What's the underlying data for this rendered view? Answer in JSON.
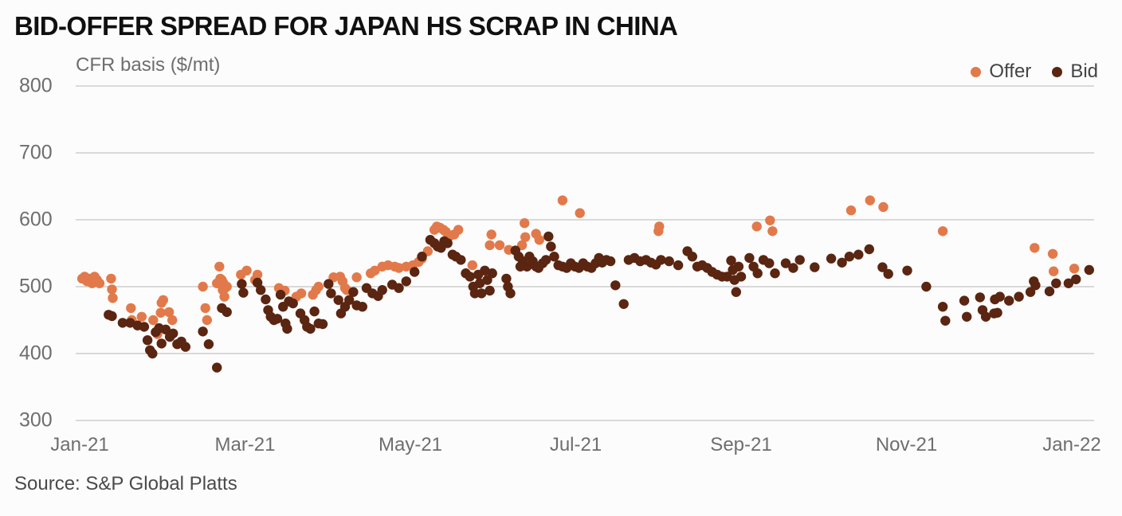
{
  "header": {
    "title": "BID-OFFER SPREAD FOR JAPAN HS SCRAP IN CHINA"
  },
  "footer": {
    "source": "Source: S&P Global Platts"
  },
  "chart_data": {
    "type": "scatter",
    "title": "BID-OFFER SPREAD FOR JAPAN HS SCRAP IN CHINA",
    "y_axis_label": "CFR basis ($/mt)",
    "source": "Source: S&P Global Platts",
    "ylim": [
      300,
      800
    ],
    "yticks": [
      800,
      700,
      600,
      500,
      400,
      300
    ],
    "xticks": [
      {
        "label": "Jan-21",
        "month": 0
      },
      {
        "label": "Mar-21",
        "month": 2
      },
      {
        "label": "May-21",
        "month": 4
      },
      {
        "label": "Jul-21",
        "month": 6
      },
      {
        "label": "Sep-21",
        "month": 8
      },
      {
        "label": "Nov-21",
        "month": 10
      },
      {
        "label": "Jan-22",
        "month": 12
      }
    ],
    "x_unit": "months since Jan-2021",
    "grid": "horizontal-only",
    "grid_color": "#d9d9d9",
    "background": "#fcfcfc",
    "legend_position": "top-right",
    "point_radius": 6.2,
    "text_colors": {
      "title": "#101010",
      "axis": "#6e6e6e",
      "legend": "#444444",
      "source": "#4a4a4a"
    },
    "series": [
      {
        "name": "Offer",
        "color": "#E2794A",
        "points": [
          [
            0.03,
            512
          ],
          [
            0.06,
            515
          ],
          [
            0.09,
            508
          ],
          [
            0.12,
            512
          ],
          [
            0.15,
            505
          ],
          [
            0.18,
            515
          ],
          [
            0.21,
            510
          ],
          [
            0.24,
            505
          ],
          [
            0.38,
            512
          ],
          [
            0.39,
            496
          ],
          [
            0.4,
            483
          ],
          [
            0.62,
            468
          ],
          [
            0.63,
            450
          ],
          [
            0.75,
            455
          ],
          [
            0.89,
            450
          ],
          [
            0.94,
            429
          ],
          [
            0.98,
            461
          ],
          [
            0.99,
            476
          ],
          [
            1.01,
            480
          ],
          [
            1.08,
            462
          ],
          [
            1.12,
            450
          ],
          [
            1.49,
            500
          ],
          [
            1.52,
            468
          ],
          [
            1.54,
            450
          ],
          [
            1.66,
            505
          ],
          [
            1.69,
            530
          ],
          [
            1.7,
            512
          ],
          [
            1.72,
            510
          ],
          [
            1.73,
            495
          ],
          [
            1.74,
            505
          ],
          [
            1.75,
            485
          ],
          [
            1.76,
            498
          ],
          [
            1.78,
            500
          ],
          [
            1.95,
            518
          ],
          [
            2.02,
            524
          ],
          [
            2.12,
            510
          ],
          [
            2.15,
            518
          ],
          [
            2.41,
            498
          ],
          [
            2.48,
            494
          ],
          [
            2.62,
            485
          ],
          [
            2.68,
            490
          ],
          [
            2.82,
            488
          ],
          [
            2.86,
            495
          ],
          [
            2.89,
            500
          ],
          [
            3.07,
            514
          ],
          [
            3.15,
            515
          ],
          [
            3.18,
            508
          ],
          [
            3.21,
            498
          ],
          [
            3.23,
            495
          ],
          [
            3.35,
            514
          ],
          [
            3.52,
            520
          ],
          [
            3.57,
            524
          ],
          [
            3.66,
            530
          ],
          [
            3.73,
            532
          ],
          [
            3.81,
            530
          ],
          [
            3.86,
            528
          ],
          [
            3.95,
            530
          ],
          [
            4.03,
            532
          ],
          [
            4.1,
            537
          ],
          [
            4.14,
            542
          ],
          [
            4.21,
            553
          ],
          [
            4.29,
            585
          ],
          [
            4.32,
            590
          ],
          [
            4.36,
            588
          ],
          [
            4.4,
            585
          ],
          [
            4.43,
            582
          ],
          [
            4.48,
            576
          ],
          [
            4.53,
            578
          ],
          [
            4.58,
            585
          ],
          [
            4.75,
            532
          ],
          [
            4.96,
            562
          ],
          [
            4.98,
            578
          ],
          [
            5.08,
            562
          ],
          [
            5.19,
            555
          ],
          [
            5.35,
            562
          ],
          [
            5.38,
            595
          ],
          [
            5.39,
            574
          ],
          [
            5.52,
            579
          ],
          [
            5.56,
            570
          ],
          [
            5.84,
            629
          ],
          [
            6.05,
            610
          ],
          [
            7.0,
            583
          ],
          [
            7.01,
            590
          ],
          [
            8.19,
            590
          ],
          [
            8.35,
            599
          ],
          [
            8.38,
            583
          ],
          [
            9.33,
            614
          ],
          [
            9.56,
            629
          ],
          [
            9.72,
            619
          ],
          [
            10.44,
            583
          ],
          [
            11.55,
            558
          ],
          [
            11.77,
            549
          ],
          [
            11.78,
            523
          ],
          [
            12.03,
            527
          ]
        ]
      },
      {
        "name": "Bid",
        "color": "#5A2511",
        "points": [
          [
            0.35,
            458
          ],
          [
            0.39,
            456
          ],
          [
            0.52,
            446
          ],
          [
            0.61,
            446
          ],
          [
            0.7,
            442
          ],
          [
            0.78,
            440
          ],
          [
            0.82,
            420
          ],
          [
            0.85,
            405
          ],
          [
            0.88,
            400
          ],
          [
            0.92,
            432
          ],
          [
            0.96,
            438
          ],
          [
            0.99,
            415
          ],
          [
            1.04,
            436
          ],
          [
            1.09,
            425
          ],
          [
            1.13,
            430
          ],
          [
            1.18,
            414
          ],
          [
            1.23,
            418
          ],
          [
            1.28,
            410
          ],
          [
            1.49,
            433
          ],
          [
            1.56,
            414
          ],
          [
            1.66,
            379
          ],
          [
            1.72,
            468
          ],
          [
            1.78,
            462
          ],
          [
            1.96,
            504
          ],
          [
            1.98,
            491
          ],
          [
            2.15,
            506
          ],
          [
            2.19,
            495
          ],
          [
            2.25,
            481
          ],
          [
            2.28,
            465
          ],
          [
            2.31,
            455
          ],
          [
            2.35,
            450
          ],
          [
            2.39,
            452
          ],
          [
            2.43,
            488
          ],
          [
            2.46,
            470
          ],
          [
            2.49,
            445
          ],
          [
            2.51,
            437
          ],
          [
            2.53,
            478
          ],
          [
            2.58,
            475
          ],
          [
            2.67,
            460
          ],
          [
            2.72,
            450
          ],
          [
            2.75,
            440
          ],
          [
            2.79,
            437
          ],
          [
            2.84,
            463
          ],
          [
            2.89,
            445
          ],
          [
            2.94,
            444
          ],
          [
            3.01,
            504
          ],
          [
            3.04,
            490
          ],
          [
            3.13,
            480
          ],
          [
            3.16,
            460
          ],
          [
            3.21,
            470
          ],
          [
            3.26,
            480
          ],
          [
            3.31,
            492
          ],
          [
            3.35,
            472
          ],
          [
            3.42,
            470
          ],
          [
            3.47,
            498
          ],
          [
            3.54,
            490
          ],
          [
            3.61,
            486
          ],
          [
            3.66,
            495
          ],
          [
            3.78,
            503
          ],
          [
            3.86,
            498
          ],
          [
            3.95,
            508
          ],
          [
            4.05,
            522
          ],
          [
            4.14,
            545
          ],
          [
            4.24,
            570
          ],
          [
            4.29,
            565
          ],
          [
            4.33,
            560
          ],
          [
            4.37,
            558
          ],
          [
            4.41,
            568
          ],
          [
            4.45,
            565
          ],
          [
            4.51,
            548
          ],
          [
            4.55,
            545
          ],
          [
            4.61,
            540
          ],
          [
            4.67,
            520
          ],
          [
            4.72,
            515
          ],
          [
            4.76,
            500
          ],
          [
            4.78,
            490
          ],
          [
            4.82,
            518
          ],
          [
            4.84,
            505
          ],
          [
            4.86,
            490
          ],
          [
            4.9,
            524
          ],
          [
            4.93,
            510
          ],
          [
            4.96,
            494
          ],
          [
            4.99,
            520
          ],
          [
            5.16,
            512
          ],
          [
            5.18,
            500
          ],
          [
            5.21,
            490
          ],
          [
            5.27,
            554
          ],
          [
            5.31,
            545
          ],
          [
            5.33,
            530
          ],
          [
            5.36,
            538
          ],
          [
            5.41,
            530
          ],
          [
            5.44,
            545
          ],
          [
            5.48,
            538
          ],
          [
            5.52,
            530
          ],
          [
            5.55,
            528
          ],
          [
            5.6,
            535
          ],
          [
            5.64,
            540
          ],
          [
            5.67,
            575
          ],
          [
            5.7,
            560
          ],
          [
            5.74,
            545
          ],
          [
            5.79,
            532
          ],
          [
            5.84,
            530
          ],
          [
            5.89,
            528
          ],
          [
            5.94,
            535
          ],
          [
            5.99,
            530
          ],
          [
            6.04,
            528
          ],
          [
            6.09,
            535
          ],
          [
            6.14,
            530
          ],
          [
            6.19,
            528
          ],
          [
            6.24,
            535
          ],
          [
            6.28,
            543
          ],
          [
            6.32,
            536
          ],
          [
            6.37,
            540
          ],
          [
            6.42,
            538
          ],
          [
            6.48,
            502
          ],
          [
            6.58,
            474
          ],
          [
            6.64,
            540
          ],
          [
            6.71,
            543
          ],
          [
            6.78,
            538
          ],
          [
            6.85,
            540
          ],
          [
            6.91,
            536
          ],
          [
            6.97,
            533
          ],
          [
            7.03,
            540
          ],
          [
            7.13,
            538
          ],
          [
            7.24,
            532
          ],
          [
            7.35,
            553
          ],
          [
            7.41,
            545
          ],
          [
            7.47,
            530
          ],
          [
            7.53,
            532
          ],
          [
            7.59,
            528
          ],
          [
            7.65,
            522
          ],
          [
            7.71,
            518
          ],
          [
            7.77,
            515
          ],
          [
            7.83,
            515
          ],
          [
            7.88,
            539
          ],
          [
            7.9,
            525
          ],
          [
            7.92,
            510
          ],
          [
            7.94,
            492
          ],
          [
            7.97,
            530
          ],
          [
            8.0,
            515
          ],
          [
            8.1,
            543
          ],
          [
            8.15,
            530
          ],
          [
            8.2,
            520
          ],
          [
            8.27,
            540
          ],
          [
            8.34,
            535
          ],
          [
            8.41,
            520
          ],
          [
            8.54,
            535
          ],
          [
            8.63,
            528
          ],
          [
            8.71,
            540
          ],
          [
            8.89,
            529
          ],
          [
            9.09,
            542
          ],
          [
            9.22,
            536
          ],
          [
            9.31,
            545
          ],
          [
            9.42,
            548
          ],
          [
            9.55,
            556
          ],
          [
            9.71,
            529
          ],
          [
            9.78,
            519
          ],
          [
            10.01,
            524
          ],
          [
            10.24,
            500
          ],
          [
            10.44,
            470
          ],
          [
            10.47,
            449
          ],
          [
            10.7,
            479
          ],
          [
            10.73,
            455
          ],
          [
            10.89,
            484
          ],
          [
            10.92,
            465
          ],
          [
            10.96,
            455
          ],
          [
            11.06,
            460
          ],
          [
            11.07,
            481
          ],
          [
            11.1,
            461
          ],
          [
            11.13,
            485
          ],
          [
            11.24,
            479
          ],
          [
            11.36,
            485
          ],
          [
            11.5,
            492
          ],
          [
            11.54,
            508
          ],
          [
            11.56,
            502
          ],
          [
            11.73,
            493
          ],
          [
            11.81,
            505
          ],
          [
            11.96,
            505
          ],
          [
            12.05,
            511
          ],
          [
            12.21,
            525
          ]
        ]
      }
    ]
  }
}
